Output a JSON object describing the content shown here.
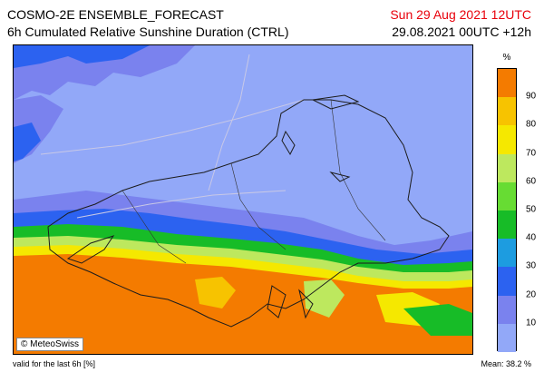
{
  "header": {
    "title": "COSMO-2E ENSEMBLE_FORECAST",
    "subtitle": "6h Cumulated Relative Sunshine Duration (CTRL)",
    "valid_date": "Sun 29 Aug 2021 12UTC",
    "run_info": "29.08.2021 00UTC +12h"
  },
  "map": {
    "copyright": "© MeteoSwiss",
    "dominant_north_value_percent": 5,
    "dominant_south_value_percent": 95
  },
  "legend": {
    "unit": "%",
    "ticks": [
      "10",
      "20",
      "30",
      "40",
      "50",
      "60",
      "70",
      "80",
      "90"
    ],
    "colors": [
      "#92a8f8",
      "#7a82ee",
      "#2c62f0",
      "#1d9ce0",
      "#17bc27",
      "#67dc33",
      "#bde85e",
      "#f5e800",
      "#f7c300",
      "#f47b00"
    ]
  },
  "footer": {
    "note": "valid for the last 6h [%]",
    "mean": "Mean:  38.2 %"
  }
}
